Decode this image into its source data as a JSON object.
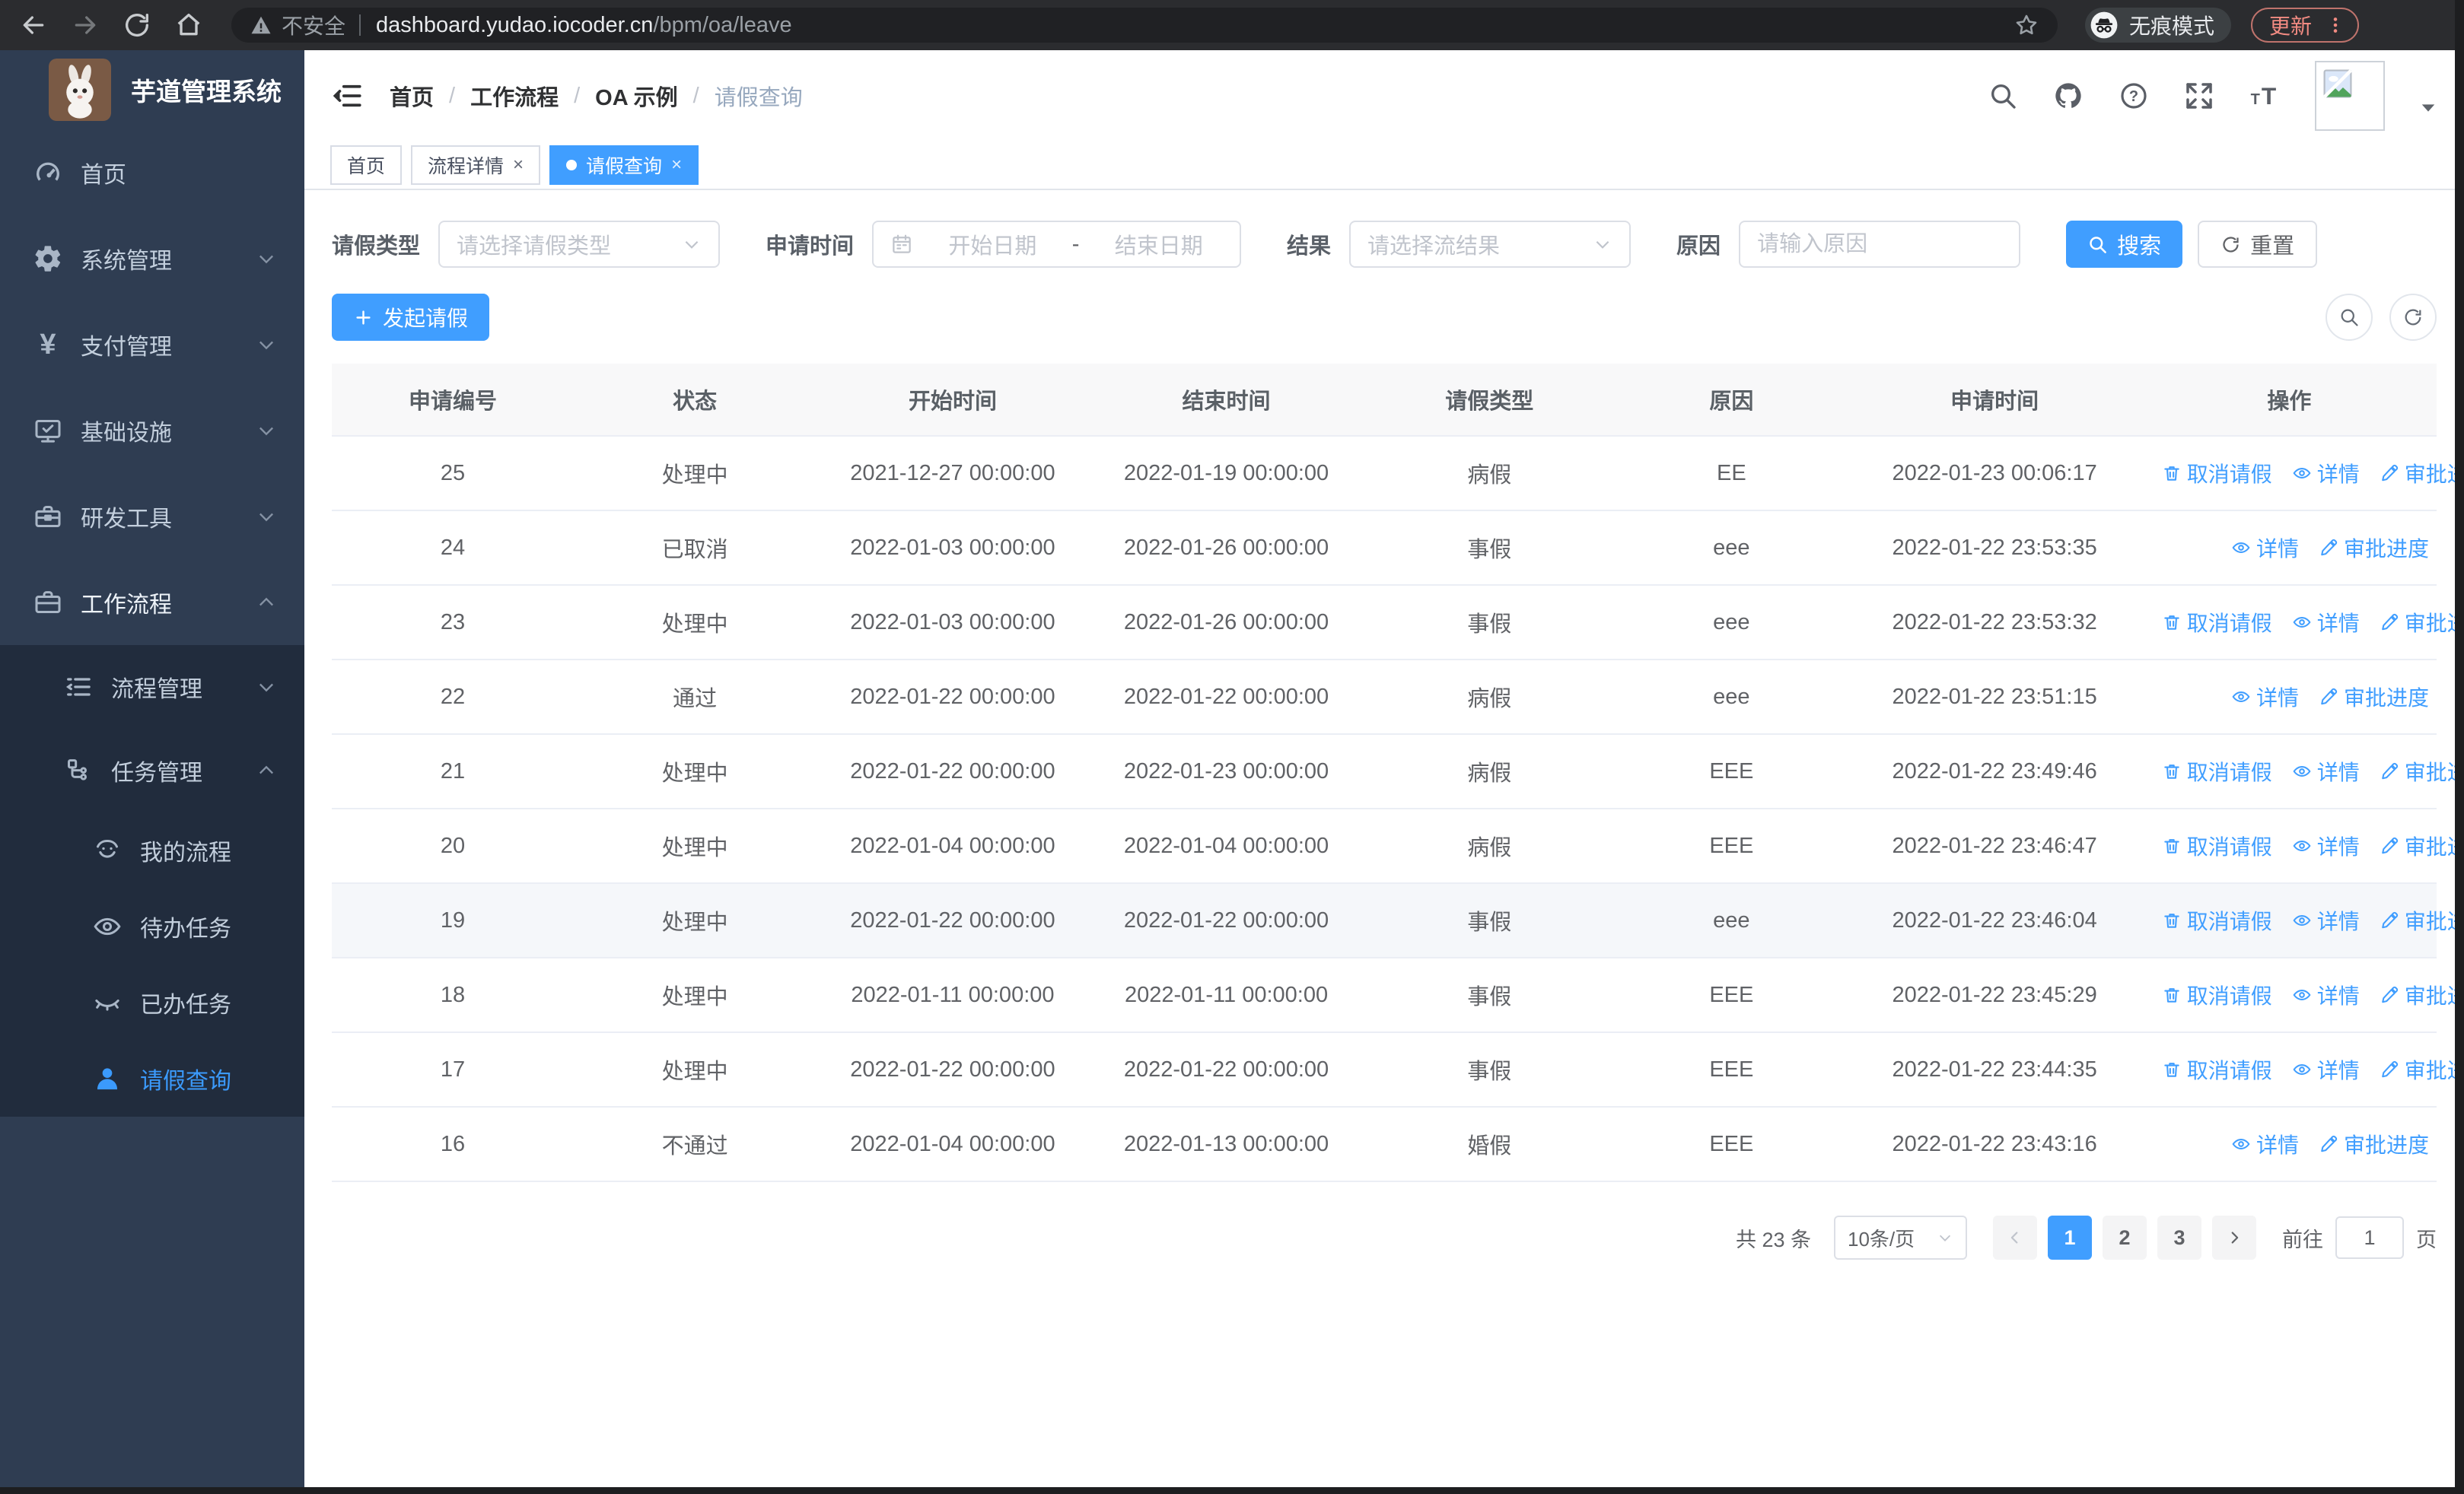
{
  "colors": {
    "accent": "#409eff",
    "sidebar_bg": "#2f3d52",
    "submenu_bg": "#212c3d",
    "update_red": "#f28b82",
    "row_highlight": "#f5f7fa"
  },
  "browser": {
    "security_label": "不安全",
    "url_host": "dashboard.yudao.iocoder.cn",
    "url_path": "/bpm/oa/leave",
    "incognito_label": "无痕模式",
    "update_label": "更新"
  },
  "sidebar": {
    "app_title": "芋道管理系统",
    "menu": [
      {
        "key": "home",
        "label": "首页",
        "icon": "dashboard-icon"
      },
      {
        "key": "system",
        "label": "系统管理",
        "icon": "gear-icon",
        "chevron": "down"
      },
      {
        "key": "payment",
        "label": "支付管理",
        "icon": "yen-icon",
        "chevron": "down"
      },
      {
        "key": "infra",
        "label": "基础设施",
        "icon": "monitor-icon",
        "chevron": "down"
      },
      {
        "key": "devtools",
        "label": "研发工具",
        "icon": "toolbox-icon",
        "chevron": "down"
      },
      {
        "key": "workflow",
        "label": "工作流程",
        "icon": "briefcase-icon",
        "chevron": "up",
        "parentActive": true,
        "children": [
          {
            "key": "process-mgmt",
            "label": "流程管理",
            "icon": "flow-list-icon",
            "chevron": "down"
          },
          {
            "key": "task-mgmt",
            "label": "任务管理",
            "icon": "task-tree-icon",
            "chevron": "up",
            "children": [
              {
                "key": "my-process",
                "label": "我的流程",
                "icon": "robot-face-icon"
              },
              {
                "key": "todo-tasks",
                "label": "待办任务",
                "icon": "eye-open-icon"
              },
              {
                "key": "done-tasks",
                "label": "已办任务",
                "icon": "eye-closed-icon"
              },
              {
                "key": "leave-query",
                "label": "请假查询",
                "icon": "user-icon",
                "active": true
              }
            ]
          }
        ]
      }
    ]
  },
  "header": {
    "breadcrumb": [
      "首页",
      "工作流程",
      "OA 示例",
      "请假查询"
    ]
  },
  "tabs": [
    {
      "label": "首页",
      "closable": false,
      "active": false
    },
    {
      "label": "流程详情",
      "closable": true,
      "active": false
    },
    {
      "label": "请假查询",
      "closable": true,
      "active": true
    }
  ],
  "filters": {
    "leave_type_label": "请假类型",
    "leave_type_placeholder": "请选择请假类型",
    "apply_time_label": "申请时间",
    "date_start_placeholder": "开始日期",
    "date_separator": "-",
    "date_end_placeholder": "结束日期",
    "result_label": "结果",
    "result_placeholder": "请选择流结果",
    "reason_label": "原因",
    "reason_placeholder": "请输入原因",
    "search_label": "搜索",
    "reset_label": "重置"
  },
  "toolbar": {
    "create_label": "发起请假"
  },
  "table": {
    "columns": [
      "申请编号",
      "状态",
      "开始时间",
      "结束时间",
      "请假类型",
      "原因",
      "申请时间",
      "操作"
    ],
    "action_labels": {
      "cancel": "取消请假",
      "detail": "详情",
      "progress": "审批进度"
    },
    "rows": [
      {
        "id": "25",
        "status": "处理中",
        "start": "2021-12-27 00:00:00",
        "end": "2022-01-19 00:00:00",
        "type": "病假",
        "reason": "EE",
        "apply": "2022-01-23 00:06:17",
        "actions": [
          "cancel",
          "detail",
          "progress"
        ],
        "highlighted": false
      },
      {
        "id": "24",
        "status": "已取消",
        "start": "2022-01-03 00:00:00",
        "end": "2022-01-26 00:00:00",
        "type": "事假",
        "reason": "eee",
        "apply": "2022-01-22 23:53:35",
        "actions": [
          "detail",
          "progress"
        ],
        "highlighted": false
      },
      {
        "id": "23",
        "status": "处理中",
        "start": "2022-01-03 00:00:00",
        "end": "2022-01-26 00:00:00",
        "type": "事假",
        "reason": "eee",
        "apply": "2022-01-22 23:53:32",
        "actions": [
          "cancel",
          "detail",
          "progress"
        ],
        "highlighted": false
      },
      {
        "id": "22",
        "status": "通过",
        "start": "2022-01-22 00:00:00",
        "end": "2022-01-22 00:00:00",
        "type": "病假",
        "reason": "eee",
        "apply": "2022-01-22 23:51:15",
        "actions": [
          "detail",
          "progress"
        ],
        "highlighted": false
      },
      {
        "id": "21",
        "status": "处理中",
        "start": "2022-01-22 00:00:00",
        "end": "2022-01-23 00:00:00",
        "type": "病假",
        "reason": "EEE",
        "apply": "2022-01-22 23:49:46",
        "actions": [
          "cancel",
          "detail",
          "progress"
        ],
        "highlighted": false
      },
      {
        "id": "20",
        "status": "处理中",
        "start": "2022-01-04 00:00:00",
        "end": "2022-01-04 00:00:00",
        "type": "病假",
        "reason": "EEE",
        "apply": "2022-01-22 23:46:47",
        "actions": [
          "cancel",
          "detail",
          "progress"
        ],
        "highlighted": false
      },
      {
        "id": "19",
        "status": "处理中",
        "start": "2022-01-22 00:00:00",
        "end": "2022-01-22 00:00:00",
        "type": "事假",
        "reason": "eee",
        "apply": "2022-01-22 23:46:04",
        "actions": [
          "cancel",
          "detail",
          "progress"
        ],
        "highlighted": true
      },
      {
        "id": "18",
        "status": "处理中",
        "start": "2022-01-11 00:00:00",
        "end": "2022-01-11 00:00:00",
        "type": "事假",
        "reason": "EEE",
        "apply": "2022-01-22 23:45:29",
        "actions": [
          "cancel",
          "detail",
          "progress"
        ],
        "highlighted": false
      },
      {
        "id": "17",
        "status": "处理中",
        "start": "2022-01-22 00:00:00",
        "end": "2022-01-22 00:00:00",
        "type": "事假",
        "reason": "EEE",
        "apply": "2022-01-22 23:44:35",
        "actions": [
          "cancel",
          "detail",
          "progress"
        ],
        "highlighted": false
      },
      {
        "id": "16",
        "status": "不通过",
        "start": "2022-01-04 00:00:00",
        "end": "2022-01-13 00:00:00",
        "type": "婚假",
        "reason": "EEE",
        "apply": "2022-01-22 23:43:16",
        "actions": [
          "detail",
          "progress"
        ],
        "highlighted": false
      }
    ]
  },
  "pagination": {
    "total_label": "共 23 条",
    "page_size": "10条/页",
    "pages": [
      "1",
      "2",
      "3"
    ],
    "active_page": "1",
    "goto_label": "前往",
    "goto_value": "1",
    "page_suffix": "页"
  }
}
